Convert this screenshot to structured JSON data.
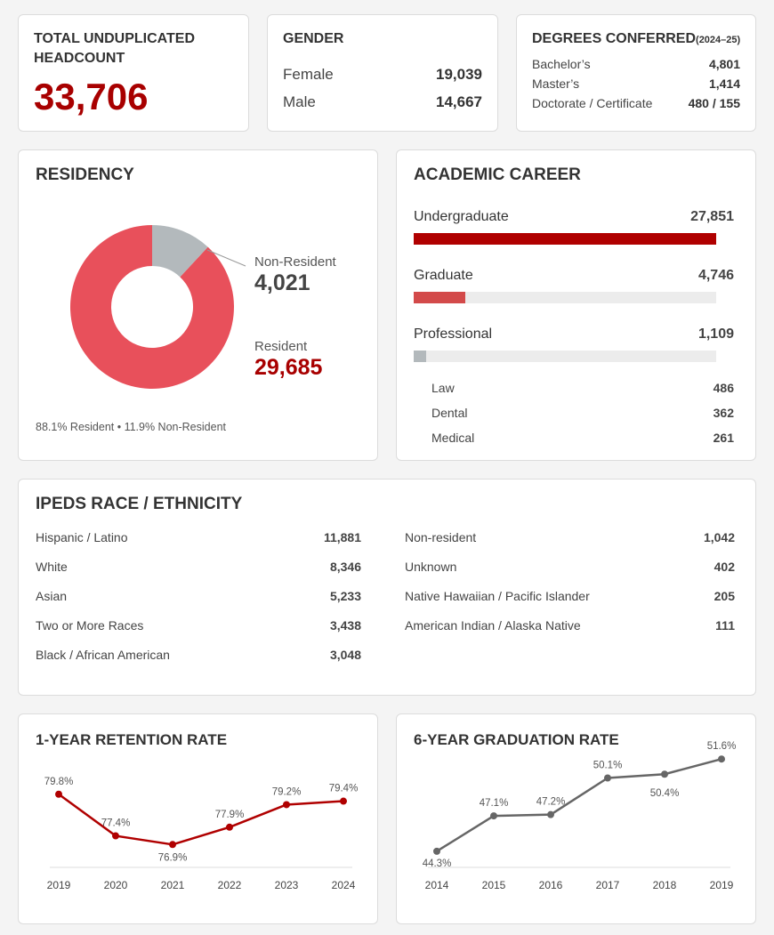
{
  "colors": {
    "accent": "#b00000",
    "resident": "#e8505b",
    "nonresident": "#b3b9bc",
    "track": "#ececec",
    "grad_line": "#666666"
  },
  "headcount": {
    "title_line1": "TOTAL UNDUPLICATED",
    "title_line2": "HEADCOUNT",
    "value": "33,706"
  },
  "gender": {
    "title": "GENDER",
    "rows": [
      {
        "label": "Female",
        "value": "19,039"
      },
      {
        "label": "Male",
        "value": "14,667"
      }
    ]
  },
  "degrees": {
    "title": "DEGREES CONFERRED",
    "subtitle": "(2024–25)",
    "rows": [
      {
        "label": "Bachelor’s",
        "value": "4,801"
      },
      {
        "label": "Master’s",
        "value": "1,414"
      },
      {
        "label": "Doctorate / Certificate",
        "value": "480 / 155"
      }
    ]
  },
  "residency": {
    "title": "RESIDENCY",
    "nonresident_label": "Non-Resident",
    "nonresident_value": "4,021",
    "resident_label": "Resident",
    "resident_value": "29,685",
    "footnote": "88.1% Resident • 11.9% Non-Resident"
  },
  "career": {
    "title": "ACADEMIC CAREER",
    "bars": [
      {
        "label": "Undergraduate",
        "value": "27,851",
        "fraction": 1.0,
        "color": "#b00000"
      },
      {
        "label": "Graduate",
        "value": "4,746",
        "fraction": 0.17,
        "color": "#d34a4a"
      },
      {
        "label": "Professional",
        "value": "1,109",
        "fraction": 0.04,
        "color": "#b3b9bc"
      }
    ],
    "sub": [
      {
        "label": "Law",
        "value": "486"
      },
      {
        "label": "Dental",
        "value": "362"
      },
      {
        "label": "Medical",
        "value": "261"
      }
    ]
  },
  "race": {
    "title": "IPEDS RACE / ETHNICITY",
    "left": [
      {
        "label": "Hispanic / Latino",
        "value": "11,881"
      },
      {
        "label": "White",
        "value": "8,346"
      },
      {
        "label": "Asian",
        "value": "5,233"
      },
      {
        "label": "Two or More Races",
        "value": "3,438"
      },
      {
        "label": "Black / African American",
        "value": "3,048"
      }
    ],
    "right": [
      {
        "label": "Non-resident",
        "value": "1,042"
      },
      {
        "label": "Unknown",
        "value": "402"
      },
      {
        "label": "Native Hawaiian / Pacific Islander",
        "value": "205"
      },
      {
        "label": "American Indian / Alaska Native",
        "value": "111"
      }
    ]
  },
  "retention_title": "1-YEAR RETENTION RATE",
  "graduation_title": "6-YEAR GRADUATION RATE",
  "chart_data": [
    {
      "type": "pie",
      "title": "RESIDENCY",
      "labels": [
        "Resident",
        "Non-Resident"
      ],
      "values": [
        29685,
        4021
      ],
      "colors": [
        "#e8505b",
        "#b3b9bc"
      ],
      "donut": true
    },
    {
      "type": "bar",
      "title": "ACADEMIC CAREER",
      "orientation": "horizontal",
      "categories": [
        "Undergraduate",
        "Graduate",
        "Professional"
      ],
      "values": [
        27851,
        4746,
        1109
      ]
    },
    {
      "type": "line",
      "title": "1-YEAR RETENTION RATE",
      "x": [
        "2019",
        "2020",
        "2021",
        "2022",
        "2023",
        "2024"
      ],
      "y": [
        79.8,
        77.4,
        76.9,
        77.9,
        79.2,
        79.4
      ],
      "labels": [
        "79.8%",
        "77.4%",
        "76.9%",
        "77.9%",
        "79.2%",
        "79.4%"
      ],
      "ylim": [
        76.3,
        80.3
      ],
      "color": "#b00000"
    },
    {
      "type": "line",
      "title": "6-YEAR GRADUATION RATE",
      "x": [
        "2014",
        "2015",
        "2016",
        "2017",
        "2018",
        "2019"
      ],
      "y": [
        44.3,
        47.1,
        47.2,
        50.1,
        50.4,
        51.6
      ],
      "labels": [
        "44.3%",
        "47.1%",
        "47.2%",
        "50.1%",
        "50.4%",
        "51.6%"
      ],
      "ylim": [
        42.6,
        52.6
      ],
      "color": "#666666"
    }
  ]
}
